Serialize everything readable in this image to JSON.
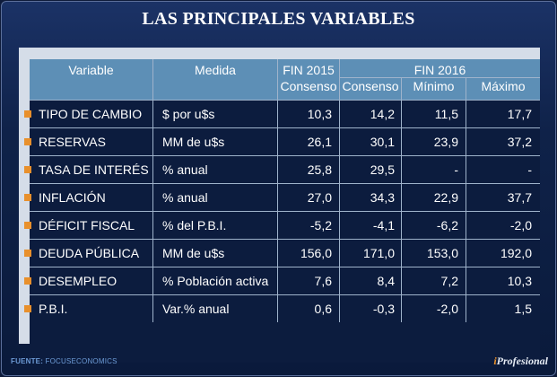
{
  "title": "LAS PRINCIPALES VARIABLES",
  "chart_data": {
    "type": "table",
    "header": {
      "variable": "Variable",
      "medida": "Medida",
      "group_2015": "FIN 2015",
      "group_2016": "FIN 2016",
      "sub_2015": "Consenso",
      "sub_2016_consenso": "Consenso",
      "sub_2016_minimo": "Mínimo",
      "sub_2016_maximo": "Máximo"
    },
    "rows": [
      {
        "variable": "TIPO DE CAMBIO",
        "medida": "$ por u$s",
        "c2015": "10,3",
        "c2016": "14,2",
        "min": "11,5",
        "max": "17,7"
      },
      {
        "variable": "RESERVAS",
        "medida": "MM de u$s",
        "c2015": "26,1",
        "c2016": "30,1",
        "min": "23,9",
        "max": "37,2"
      },
      {
        "variable": "TASA DE INTERÉS",
        "medida": "% anual",
        "c2015": "25,8",
        "c2016": "29,5",
        "min": "-",
        "max": "-"
      },
      {
        "variable": "INFLACIÓN",
        "medida": "% anual",
        "c2015": "27,0",
        "c2016": "34,3",
        "min": "22,9",
        "max": "37,7"
      },
      {
        "variable": "DÉFICIT FISCAL",
        "medida": "% del P.B.I.",
        "c2015": "-5,2",
        "c2016": "-4,1",
        "min": "-6,2",
        "max": "-2,0"
      },
      {
        "variable": "DEUDA PÚBLICA",
        "medida": "MM de u$s",
        "c2015": "156,0",
        "c2016": "171,0",
        "min": "153,0",
        "max": "192,0"
      },
      {
        "variable": "DESEMPLEO",
        "medida": "% Población activa",
        "c2015": "7,6",
        "c2016": "8,4",
        "min": "7,2",
        "max": "10,3"
      },
      {
        "variable": "P.B.I.",
        "medida": "Var.% anual",
        "c2015": "0,6",
        "c2016": "-0,3",
        "min": "-2,0",
        "max": "1,5"
      }
    ]
  },
  "footer": {
    "source_label": "FUENTE:",
    "source_value": "FOCUSECONOMICS",
    "logo_i": "i",
    "logo_rest": "Profesional"
  },
  "colors": {
    "accent_bullet": "#e8902c",
    "header_bg": "#5d8fb6",
    "body_bg": "#0c1c3e"
  }
}
